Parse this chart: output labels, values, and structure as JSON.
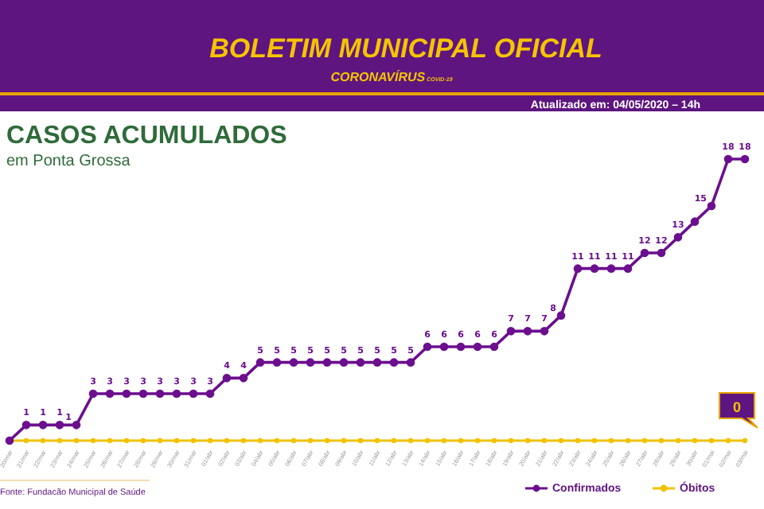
{
  "chart_data": {
    "type": "line",
    "title": "CASOS ACUMULADOS",
    "subtitle": "em Ponta Grossa",
    "annotations": [
      "BOLETIM MUNICIPAL OFICIAL",
      "CORONAVÍRUS",
      "COVID-19",
      "Atualizado em: 04/05/2020 – 14h",
      "Fonte: Fundacão Municipal de Saúde",
      {
        "text": "0",
        "x": "03/mai",
        "y": 0
      }
    ],
    "categories": [
      "20/mar",
      "21/mar",
      "22/mar",
      "23/mar",
      "24/mar",
      "25/mar",
      "26/mar",
      "27/mar",
      "28/mar",
      "29/mar",
      "30/mar",
      "31/mar",
      "01/abr",
      "02/abr",
      "03/abr",
      "04/abr",
      "05/abr",
      "06/abr",
      "07/abr",
      "08/abr",
      "09/abr",
      "10/abr",
      "11/abr",
      "12/abr",
      "13/abr",
      "14/abr",
      "15/abr",
      "16/abr",
      "17/abr",
      "18/abr",
      "19/abr",
      "20/abr",
      "21/abr",
      "22/abr",
      "23/abr",
      "24/abr",
      "25/abr",
      "26/abr",
      "27/abr",
      "28/abr",
      "29/abr",
      "30/abr",
      "01/mai",
      "02/mai",
      "03/mai"
    ],
    "series": [
      {
        "name": "Confirmados",
        "color": "#6b0f8e",
        "values": [
          0,
          1,
          1,
          1,
          1,
          3,
          3,
          3,
          3,
          3,
          3,
          3,
          3,
          4,
          4,
          5,
          5,
          5,
          5,
          5,
          5,
          5,
          5,
          5,
          5,
          6,
          6,
          6,
          6,
          6,
          7,
          7,
          7,
          8,
          11,
          11,
          11,
          11,
          12,
          12,
          13,
          14,
          15,
          18,
          18
        ],
        "value_labels": [
          null,
          "1",
          "1",
          "1",
          "1",
          "3",
          "3",
          "3",
          "3",
          "3",
          "3",
          "3",
          "3",
          "4",
          "4",
          "5",
          "5",
          "5",
          "5",
          "5",
          "5",
          "5",
          "5",
          "5",
          "5",
          "6",
          "6",
          "6",
          "6",
          "6",
          "7",
          "7",
          "7",
          "8",
          "11",
          "11",
          "11",
          "11",
          "12",
          "12",
          "13",
          null,
          "15",
          "18",
          "18"
        ]
      },
      {
        "name": "Óbitos",
        "color": "#f2c200",
        "values": [
          0,
          0,
          0,
          0,
          0,
          0,
          0,
          0,
          0,
          0,
          0,
          0,
          0,
          0,
          0,
          0,
          0,
          0,
          0,
          0,
          0,
          0,
          0,
          0,
          0,
          0,
          0,
          0,
          0,
          0,
          0,
          0,
          0,
          0,
          0,
          0,
          0,
          0,
          0,
          0,
          0,
          0,
          0,
          0,
          0
        ]
      }
    ],
    "marker": "circle",
    "legend": "bottom right",
    "tick_labels": "x",
    "grid": false
  }
}
